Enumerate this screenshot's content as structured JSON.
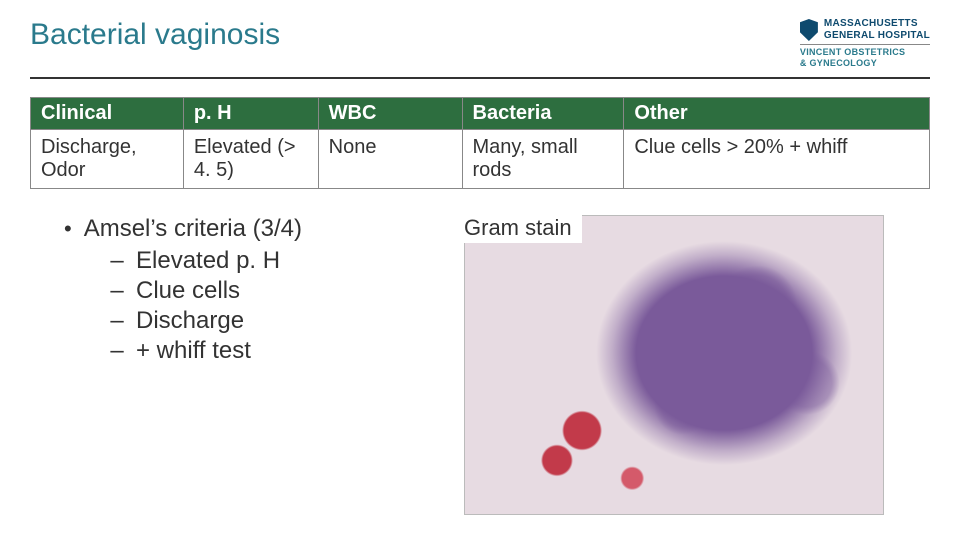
{
  "header": {
    "title": "Bacterial vaginosis",
    "logo": {
      "line1": "MASSACHUSETTS",
      "line2": "GENERAL HOSPITAL",
      "sub1": "VINCENT OBSTETRICS",
      "sub2": "& GYNECOLOGY"
    }
  },
  "table": {
    "header_bg": "#2d6e3f",
    "header_fg": "#ffffff",
    "columns": [
      "Clinical",
      "p. H",
      "WBC",
      "Bacteria",
      "Other"
    ],
    "widths_pct": [
      17,
      15,
      16,
      18,
      34
    ],
    "rows": [
      [
        "Discharge, Odor",
        "Elevated (> 4. 5)",
        "None",
        "Many, small rods",
        "Clue cells > 20% + whiff"
      ]
    ]
  },
  "criteria": {
    "heading": "Amsel’s criteria (3/4)",
    "items": [
      "Elevated p. H",
      "Clue cells",
      "Discharge",
      "+ whiff test"
    ]
  },
  "figure": {
    "caption": "Gram stain"
  },
  "colors": {
    "title": "#2a7a8c",
    "text": "#333333",
    "rule": "#333333"
  }
}
